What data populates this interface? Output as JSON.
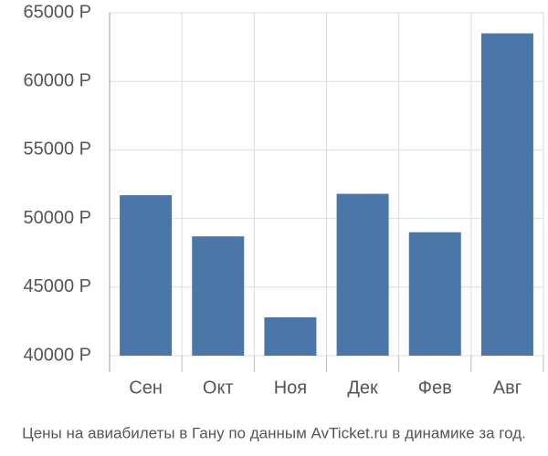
{
  "chart_data": {
    "type": "bar",
    "caption": "Цены на авиабилеты в Гану по данным AvTicket.ru в динамике за год.",
    "categories": [
      "Сен",
      "Окт",
      "Ноя",
      "Дек",
      "Фев",
      "Авг"
    ],
    "values": [
      51700,
      48700,
      42800,
      51800,
      49000,
      63500
    ],
    "color": "#4a76a8",
    "ylim": [
      40000,
      65000
    ],
    "yticks": [
      {
        "value": 40000,
        "label": "40000 Р"
      },
      {
        "value": 45000,
        "label": "45000 Р"
      },
      {
        "value": 50000,
        "label": "50000 Р"
      },
      {
        "value": 55000,
        "label": "55000 Р"
      },
      {
        "value": 60000,
        "label": "60000 Р"
      },
      {
        "value": 65000,
        "label": "65000 Р"
      }
    ],
    "grid": true
  }
}
